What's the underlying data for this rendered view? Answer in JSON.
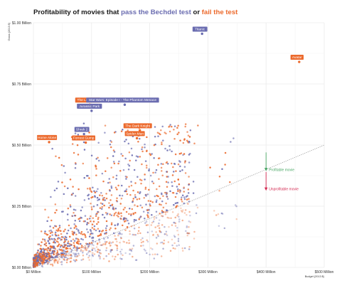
{
  "chart_data": {
    "type": "scatter",
    "title": {
      "prefix": "Profitability of movies that",
      "pass": "pass the Bechdel test",
      "connector": "or",
      "fail": "fail the test"
    },
    "xlabel": "Budget (2013 $)",
    "ylabel": "Gross (2013 $)",
    "xlim": [
      0,
      500
    ],
    "ylim": [
      0,
      1000
    ],
    "x_ticks": [
      {
        "value": 0,
        "label": "$0 Million"
      },
      {
        "value": 100,
        "label": "$100 Million"
      },
      {
        "value": 200,
        "label": "$200 Million"
      },
      {
        "value": 300,
        "label": "$300 Million"
      },
      {
        "value": 400,
        "label": "$400 Million"
      },
      {
        "value": 500,
        "label": "$500 Million"
      }
    ],
    "y_ticks": [
      {
        "value": 0,
        "label": "$0.00 Billion"
      },
      {
        "value": 250,
        "label": "$0.25 Billion"
      },
      {
        "value": 500,
        "label": "$0.50 Billion"
      },
      {
        "value": 750,
        "label": "$0.75 Billion"
      },
      {
        "value": 1000,
        "label": "$1.00 Billion"
      }
    ],
    "grid": true,
    "colors": {
      "pass": "#6a6cb0",
      "fail": "#ec6a2d",
      "profitable": "#4aa866",
      "unprofitable": "#d42a52",
      "breakeven": "#9a9a9a"
    },
    "breakeven_line": {
      "x1": 0,
      "y1": 0,
      "x2": 500,
      "y2": 500
    },
    "annotations": [
      {
        "text": "Profitable movie",
        "x": 400,
        "y_from": 470,
        "y_to": 400,
        "color": "#4aa866",
        "direction": "up"
      },
      {
        "text": "Unprofitable movie",
        "x": 400,
        "y_from": 390,
        "y_to": 320,
        "color": "#d42a52",
        "direction": "down"
      }
    ],
    "labeled_movies": [
      {
        "name": "Titanic",
        "x": 290,
        "y": 955,
        "group": "pass"
      },
      {
        "name": "Avatar",
        "x": 457,
        "y": 840,
        "group": "fail"
      },
      {
        "name": "The Lion King",
        "x": 97,
        "y": 665,
        "group": "fail"
      },
      {
        "name": "Star Wars: Episode I - The Phantom Menace",
        "x": 157,
        "y": 665,
        "group": "pass"
      },
      {
        "name": "Jurassic Park",
        "x": 100,
        "y": 640,
        "group": "pass"
      },
      {
        "name": "The Dark Knight",
        "x": 183,
        "y": 560,
        "group": "fail"
      },
      {
        "name": "Shrek 2",
        "x": 87,
        "y": 545,
        "group": "pass"
      },
      {
        "name": "Spider-Man",
        "x": 178,
        "y": 528,
        "group": "fail"
      },
      {
        "name": "Home Alone",
        "x": 27,
        "y": 512,
        "group": "fail"
      },
      {
        "name": "Forrest Gump",
        "x": 90,
        "y": 510,
        "group": "fail"
      }
    ]
  }
}
